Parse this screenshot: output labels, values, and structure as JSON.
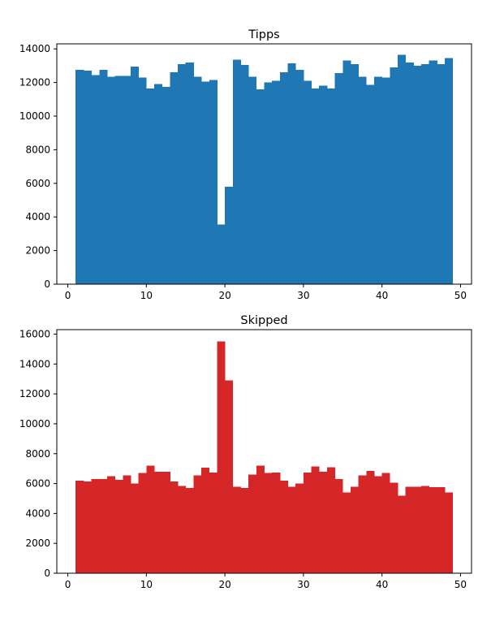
{
  "chart_data": [
    {
      "type": "bar",
      "title": "Tipps",
      "xlabel": "",
      "ylabel": "",
      "color": "#1f77b4",
      "xlim": [
        -1.4,
        51.4
      ],
      "ylim": [
        0,
        14300
      ],
      "x_ticks": [
        0,
        10,
        20,
        30,
        40,
        50
      ],
      "y_ticks": [
        0,
        2000,
        4000,
        6000,
        8000,
        10000,
        12000,
        14000
      ],
      "bin_start": 1,
      "bin_width": 1,
      "values": [
        12750,
        12700,
        12450,
        12750,
        12350,
        12400,
        12400,
        12950,
        12300,
        11650,
        11900,
        11750,
        12600,
        13100,
        13200,
        12350,
        12050,
        12150,
        3550,
        5800,
        13350,
        13050,
        12350,
        11600,
        12000,
        12100,
        12600,
        13150,
        12750,
        12100,
        11650,
        11800,
        11650,
        12550,
        13300,
        13100,
        12350,
        11850,
        12350,
        12300,
        12900,
        13650,
        13200,
        13000,
        13100,
        13300,
        13100,
        13450
      ]
    },
    {
      "type": "bar",
      "title": "Skipped",
      "xlabel": "",
      "ylabel": "",
      "color": "#d62728",
      "xlim": [
        -1.4,
        51.4
      ],
      "ylim": [
        0,
        16300
      ],
      "x_ticks": [
        0,
        10,
        20,
        30,
        40,
        50
      ],
      "y_ticks": [
        0,
        2000,
        4000,
        6000,
        8000,
        10000,
        12000,
        14000,
        16000
      ],
      "bin_start": 1,
      "bin_width": 1,
      "values": [
        6200,
        6150,
        6300,
        6300,
        6500,
        6250,
        6550,
        6000,
        6700,
        7200,
        6800,
        6800,
        6150,
        5850,
        5700,
        6550,
        7050,
        6750,
        15500,
        12900,
        5800,
        5700,
        6600,
        7200,
        6700,
        6750,
        6200,
        5800,
        6000,
        6750,
        7150,
        6800,
        7100,
        6300,
        5400,
        5800,
        6550,
        6850,
        6500,
        6700,
        6050,
        5200,
        5800,
        5800,
        5850,
        5750,
        5750,
        5400
      ]
    }
  ]
}
